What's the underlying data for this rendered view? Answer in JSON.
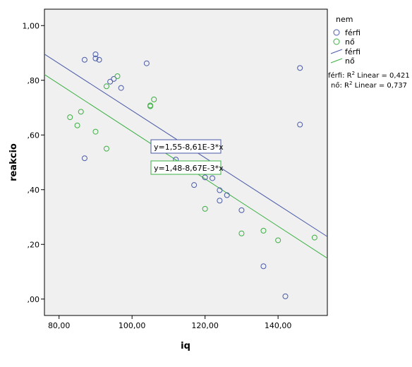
{
  "chart_data": {
    "type": "scatter",
    "xlabel": "iq",
    "ylabel": "reakcio",
    "xlim": [
      76,
      153.5
    ],
    "ylim": [
      -0.06,
      1.06
    ],
    "x_ticks": [
      {
        "value": 80,
        "label": "80,00"
      },
      {
        "value": 100,
        "label": "100,00"
      },
      {
        "value": 120,
        "label": "120,00"
      },
      {
        "value": 140,
        "label": "140,00"
      }
    ],
    "y_ticks": [
      {
        "value": 0,
        "label": ",00"
      },
      {
        "value": 0.2,
        "label": ",20"
      },
      {
        "value": 0.4,
        "label": ",40"
      },
      {
        "value": 0.6,
        "label": ",60"
      },
      {
        "value": 0.8,
        "label": ",80"
      },
      {
        "value": 1.0,
        "label": "1,00"
      }
    ],
    "legend": {
      "title": "nem",
      "position": "right",
      "entries": [
        {
          "label": "férfi",
          "kind": "marker",
          "color": "#4a5aa8"
        },
        {
          "label": "nő",
          "kind": "marker",
          "color": "#3cb043"
        },
        {
          "label": "férfi",
          "kind": "line",
          "color": "#4a5aa8"
        },
        {
          "label": "nő",
          "kind": "line",
          "color": "#3cb043"
        }
      ],
      "r2": {
        "ferfi_prefix": "férfi: R",
        "no_prefix": "nő: R",
        "sup": "2",
        "ferfi_suffix": " Linear = 0,421",
        "no_suffix": " Linear = 0,737"
      }
    },
    "series": [
      {
        "name": "férfi",
        "color": "#4a5aa8",
        "points": [
          {
            "x": 87,
            "y": 0.875
          },
          {
            "x": 87,
            "y": 0.515
          },
          {
            "x": 90,
            "y": 0.895
          },
          {
            "x": 90,
            "y": 0.88
          },
          {
            "x": 91,
            "y": 0.875
          },
          {
            "x": 94,
            "y": 0.795
          },
          {
            "x": 95,
            "y": 0.805
          },
          {
            "x": 97,
            "y": 0.772
          },
          {
            "x": 104,
            "y": 0.862
          },
          {
            "x": 112,
            "y": 0.51
          },
          {
            "x": 117,
            "y": 0.417
          },
          {
            "x": 120,
            "y": 0.445
          },
          {
            "x": 122,
            "y": 0.442
          },
          {
            "x": 124,
            "y": 0.398
          },
          {
            "x": 124,
            "y": 0.36
          },
          {
            "x": 126,
            "y": 0.38
          },
          {
            "x": 130,
            "y": 0.325
          },
          {
            "x": 136,
            "y": 0.12
          },
          {
            "x": 142,
            "y": 0.01
          },
          {
            "x": 146,
            "y": 0.845
          },
          {
            "x": 146,
            "y": 0.638
          }
        ],
        "fit": {
          "intercept": 1.55,
          "slope": -0.00861,
          "label": "y=1,55-8,61E-3*x"
        }
      },
      {
        "name": "nő",
        "color": "#3cb043",
        "points": [
          {
            "x": 83,
            "y": 0.665
          },
          {
            "x": 85,
            "y": 0.635
          },
          {
            "x": 86,
            "y": 0.685
          },
          {
            "x": 90,
            "y": 0.612
          },
          {
            "x": 93,
            "y": 0.55
          },
          {
            "x": 93,
            "y": 0.778
          },
          {
            "x": 96,
            "y": 0.815
          },
          {
            "x": 105,
            "y": 0.705
          },
          {
            "x": 105,
            "y": 0.708
          },
          {
            "x": 106,
            "y": 0.73
          },
          {
            "x": 120,
            "y": 0.33
          },
          {
            "x": 130,
            "y": 0.24
          },
          {
            "x": 136,
            "y": 0.25
          },
          {
            "x": 140,
            "y": 0.215
          },
          {
            "x": 150,
            "y": 0.225
          }
        ],
        "fit": {
          "intercept": 1.48,
          "slope": -0.00867,
          "label": "y=1,48-8,67E-3*x"
        }
      }
    ]
  }
}
